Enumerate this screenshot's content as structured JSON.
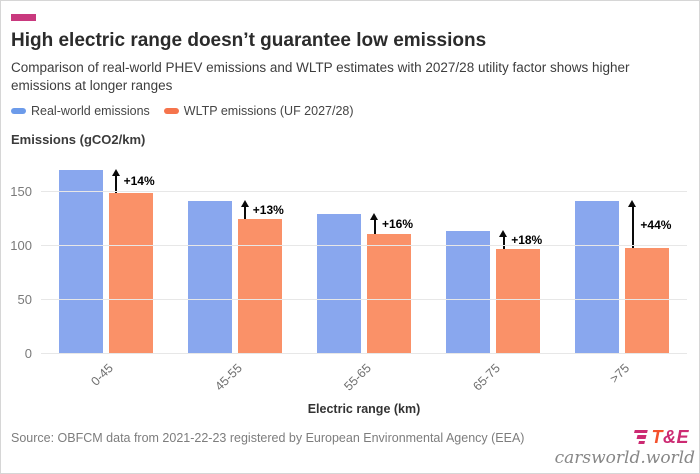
{
  "page": {
    "accent": {
      "brand_dash": "#c9397e",
      "logo_orange": "#f4512c",
      "logo_magenta": "#cc2a72"
    }
  },
  "header": {
    "title": "High electric range doesn’t guarantee low emissions",
    "subtitle": "Comparison of real-world PHEV emissions and WLTP estimates with 2027/28 utility factor shows higher emissions at longer ranges"
  },
  "legend": {
    "items": [
      {
        "label": "Real-world emissions",
        "color": "#6c9bea"
      },
      {
        "label": "WLTP emissions (UF 2027/28)",
        "color": "#f5744c"
      }
    ]
  },
  "chart_data": {
    "type": "bar",
    "title": "High electric range doesn’t guarantee low emissions",
    "subtitle": "Comparison of real-world PHEV emissions and WLTP estimates with 2027/28 utility factor shows higher emissions at longer ranges",
    "categories": [
      "0-45",
      "45-55",
      "55-65",
      "65-75",
      ">75"
    ],
    "series": [
      {
        "name": "Real-world emissions",
        "color": "#89a7ee",
        "values": [
          170,
          141,
          129,
          114,
          141
        ]
      },
      {
        "name": "WLTP emissions (UF 2027/28)",
        "color": "#fa9168",
        "values": [
          149,
          125,
          111,
          97,
          98
        ]
      }
    ],
    "annotations": [
      {
        "category": "0-45",
        "label": "+14%"
      },
      {
        "category": "45-55",
        "label": "+13%"
      },
      {
        "category": "55-65",
        "label": "+16%"
      },
      {
        "category": "65-75",
        "label": "+18%"
      },
      {
        "category": ">75",
        "label": "+44%"
      }
    ],
    "ylabel": "Emissions (gCO2/km)",
    "xlabel": "Electric range (km)",
    "yticks": [
      0,
      50,
      100,
      150
    ],
    "ylim": [
      0,
      180
    ],
    "grid": true,
    "legend_position": "top"
  },
  "footer": {
    "source": "Source: OBFCM data from 2021-22-23 registered by European Environmental Agency (EEA)",
    "logo": {
      "t": "T",
      "rest": "&E"
    },
    "watermark": "carsworld.world"
  }
}
